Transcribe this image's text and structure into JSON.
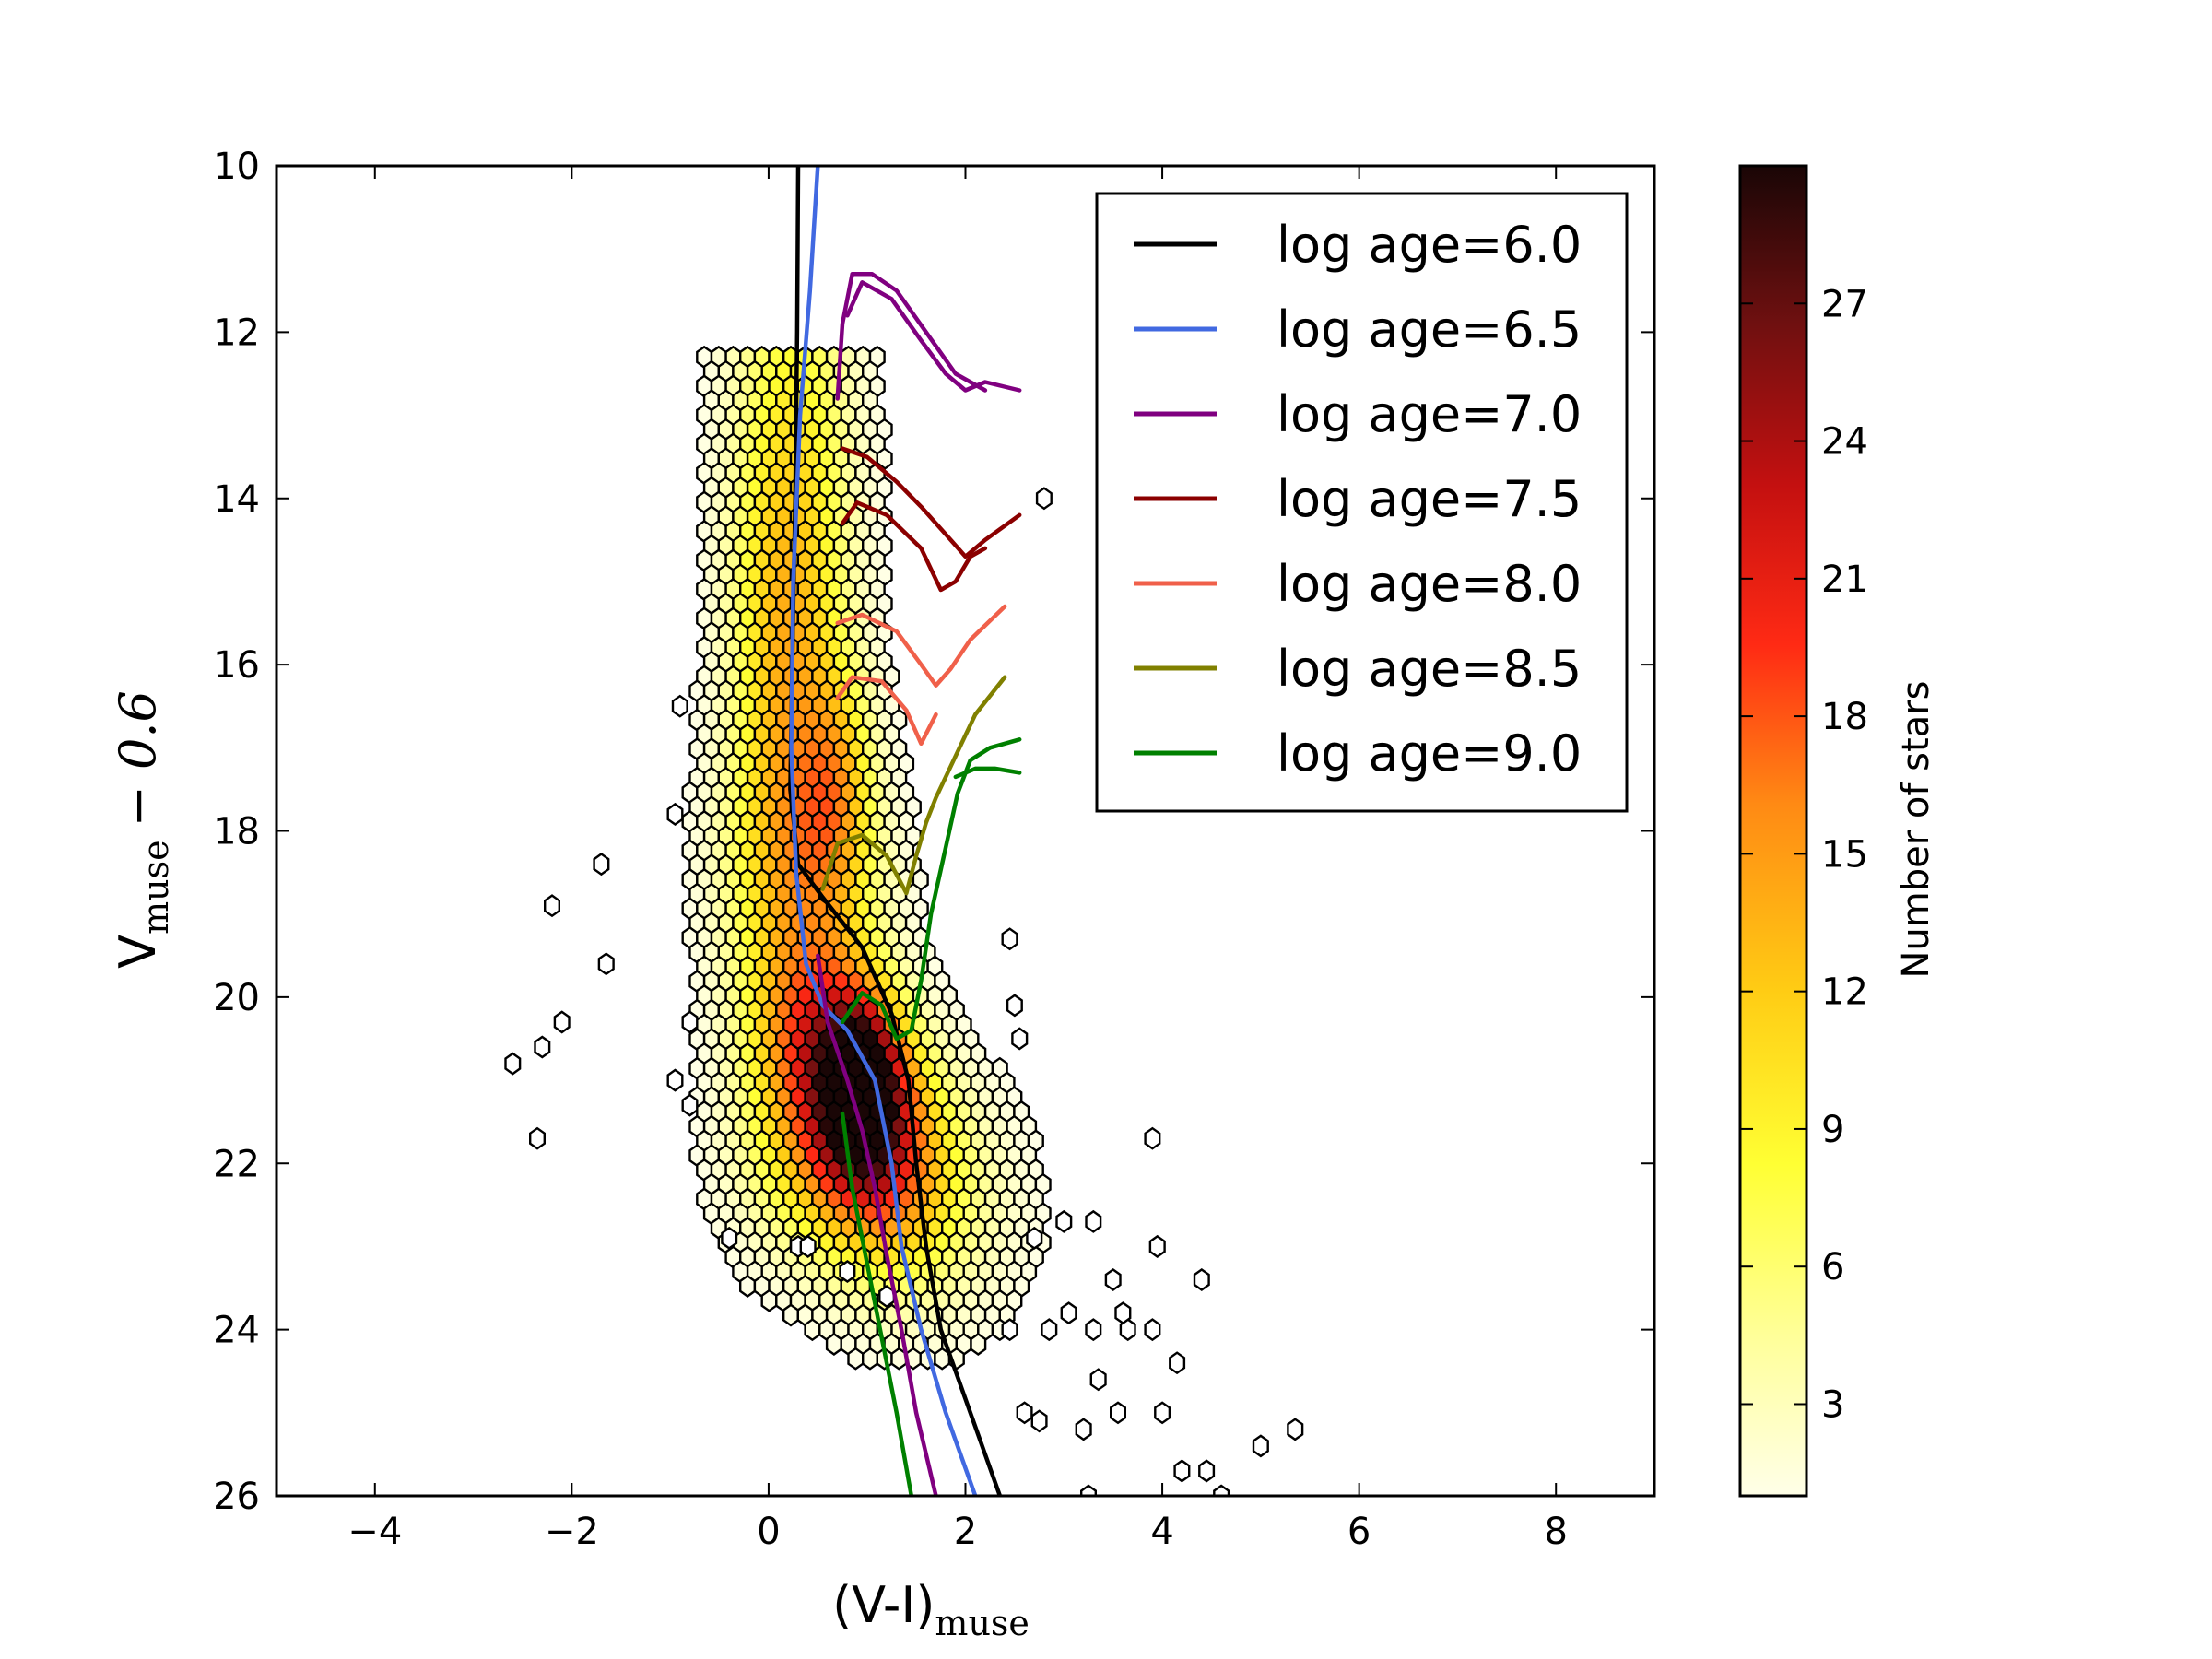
{
  "chart_data": {
    "type": "hexbin",
    "xlabel": "(V-I)",
    "xlabel_subscript": "muse",
    "ylabel": "V",
    "ylabel_subscript": "muse",
    "ylabel_suffix": "− 0.6",
    "xlim": [
      -5,
      9
    ],
    "ylim": [
      26,
      10
    ],
    "y_inverted": true,
    "x_ticks": [
      -4,
      -2,
      0,
      2,
      4,
      6,
      8
    ],
    "x_tick_labels": [
      "−4",
      "−2",
      "0",
      "2",
      "4",
      "6",
      "8"
    ],
    "y_ticks": [
      10,
      12,
      14,
      16,
      18,
      20,
      22,
      24,
      26
    ],
    "y_tick_labels": [
      "10",
      "12",
      "14",
      "16",
      "18",
      "20",
      "22",
      "24",
      "26"
    ],
    "legend_position": "top-right",
    "colorbar": {
      "label": "Number of stars",
      "range": [
        1,
        30
      ],
      "ticks": [
        3,
        6,
        9,
        12,
        15,
        18,
        21,
        24,
        27
      ],
      "tick_labels": [
        "3",
        "6",
        "9",
        "12",
        "15",
        "18",
        "21",
        "24",
        "27"
      ],
      "colormap": [
        "#ffffe0",
        "#ffff66",
        "#ffd11a",
        "#ff8c1a",
        "#ff2a1a",
        "#b01010",
        "#4a0b0b",
        "#1a0505"
      ]
    },
    "series": [
      {
        "name": "log age=6.0",
        "color": "#000000",
        "segments": [
          [
            [
              0.3,
              10.0
            ],
            [
              0.29,
              12.0
            ],
            [
              0.27,
              14.0
            ],
            [
              0.24,
              16.0
            ],
            [
              0.22,
              17.5
            ],
            [
              0.3,
              18.4
            ],
            [
              0.55,
              18.8
            ],
            [
              0.95,
              19.4
            ],
            [
              1.25,
              20.2
            ],
            [
              1.42,
              21.0
            ],
            [
              1.5,
              22.0
            ],
            [
              1.6,
              23.0
            ],
            [
              1.75,
              24.0
            ],
            [
              2.05,
              25.0
            ],
            [
              2.35,
              26.0
            ]
          ]
        ]
      },
      {
        "name": "log age=6.5",
        "color": "#4169e1",
        "segments": [
          [
            [
              0.5,
              10.0
            ],
            [
              0.42,
              11.5
            ],
            [
              0.32,
              13.0
            ],
            [
              0.25,
              15.0
            ],
            [
              0.23,
              17.0
            ],
            [
              0.28,
              18.5
            ],
            [
              0.38,
              19.6
            ],
            [
              0.55,
              20.1
            ],
            [
              0.8,
              20.4
            ],
            [
              1.08,
              21.0
            ],
            [
              1.25,
              22.0
            ],
            [
              1.35,
              23.0
            ],
            [
              1.55,
              24.0
            ],
            [
              1.8,
              25.0
            ],
            [
              2.1,
              26.0
            ]
          ]
        ]
      },
      {
        "name": "log age=7.0",
        "color": "#800080",
        "segments": [
          [
            [
              0.7,
              12.8
            ],
            [
              0.75,
              11.9
            ],
            [
              0.85,
              11.3
            ],
            [
              1.05,
              11.3
            ],
            [
              1.3,
              11.5
            ],
            [
              1.6,
              12.0
            ],
            [
              1.9,
              12.5
            ],
            [
              2.2,
              12.7
            ]
          ],
          [
            [
              0.8,
              11.8
            ],
            [
              0.95,
              11.4
            ],
            [
              1.25,
              11.6
            ],
            [
              1.55,
              12.1
            ],
            [
              1.8,
              12.5
            ],
            [
              2.0,
              12.7
            ],
            [
              2.2,
              12.6
            ],
            [
              2.55,
              12.7
            ]
          ],
          [
            [
              0.5,
              19.5
            ],
            [
              0.6,
              20.3
            ],
            [
              0.8,
              21.0
            ],
            [
              0.95,
              21.6
            ],
            [
              1.08,
              22.3
            ],
            [
              1.2,
              23.1
            ],
            [
              1.35,
              24.0
            ],
            [
              1.5,
              25.0
            ],
            [
              1.7,
              26.0
            ]
          ]
        ]
      },
      {
        "name": "log age=7.5",
        "color": "#8b0000",
        "segments": [
          [
            [
              0.75,
              13.4
            ],
            [
              1.0,
              13.5
            ],
            [
              1.3,
              13.8
            ],
            [
              1.55,
              14.1
            ],
            [
              1.85,
              14.5
            ],
            [
              2.0,
              14.7
            ],
            [
              2.2,
              14.5
            ],
            [
              2.55,
              14.2
            ]
          ],
          [
            [
              0.75,
              14.3
            ],
            [
              0.9,
              14.05
            ],
            [
              1.2,
              14.2
            ],
            [
              1.55,
              14.6
            ],
            [
              1.75,
              15.1
            ],
            [
              1.9,
              15.0
            ],
            [
              2.05,
              14.7
            ],
            [
              2.2,
              14.6
            ]
          ]
        ]
      },
      {
        "name": "log age=8.0",
        "color": "#f0604a",
        "segments": [
          [
            [
              0.7,
              15.5
            ],
            [
              0.95,
              15.4
            ],
            [
              1.3,
              15.6
            ],
            [
              1.55,
              16.0
            ],
            [
              1.7,
              16.25
            ],
            [
              1.85,
              16.05
            ],
            [
              2.05,
              15.7
            ],
            [
              2.4,
              15.3
            ]
          ],
          [
            [
              0.7,
              16.4
            ],
            [
              0.85,
              16.15
            ],
            [
              1.15,
              16.2
            ],
            [
              1.4,
              16.55
            ],
            [
              1.55,
              16.95
            ],
            [
              1.7,
              16.6
            ]
          ]
        ]
      },
      {
        "name": "log age=8.5",
        "color": "#808000",
        "segments": [
          [
            [
              0.55,
              18.7
            ],
            [
              0.7,
              18.15
            ],
            [
              0.95,
              18.05
            ],
            [
              1.2,
              18.3
            ],
            [
              1.4,
              18.75
            ],
            [
              1.5,
              18.3
            ],
            [
              1.6,
              17.9
            ],
            [
              1.7,
              17.6
            ],
            [
              1.9,
              17.1
            ],
            [
              2.1,
              16.6
            ],
            [
              2.4,
              16.15
            ]
          ]
        ]
      },
      {
        "name": "log age=9.0",
        "color": "#008000",
        "segments": [
          [
            [
              0.75,
              20.3
            ],
            [
              0.95,
              19.95
            ],
            [
              1.15,
              20.1
            ],
            [
              1.3,
              20.5
            ],
            [
              1.45,
              20.4
            ],
            [
              1.55,
              19.8
            ],
            [
              1.65,
              19.0
            ],
            [
              1.8,
              18.2
            ],
            [
              1.92,
              17.55
            ],
            [
              2.05,
              17.15
            ],
            [
              2.25,
              17.0
            ],
            [
              2.55,
              16.9
            ]
          ],
          [
            [
              1.9,
              17.35
            ],
            [
              2.1,
              17.25
            ],
            [
              2.3,
              17.25
            ],
            [
              2.55,
              17.3
            ]
          ],
          [
            [
              0.75,
              21.4
            ],
            [
              0.85,
              22.3
            ],
            [
              1.0,
              23.2
            ],
            [
              1.15,
              24.1
            ],
            [
              1.3,
              25.0
            ],
            [
              1.45,
              26.0
            ]
          ]
        ]
      }
    ]
  }
}
